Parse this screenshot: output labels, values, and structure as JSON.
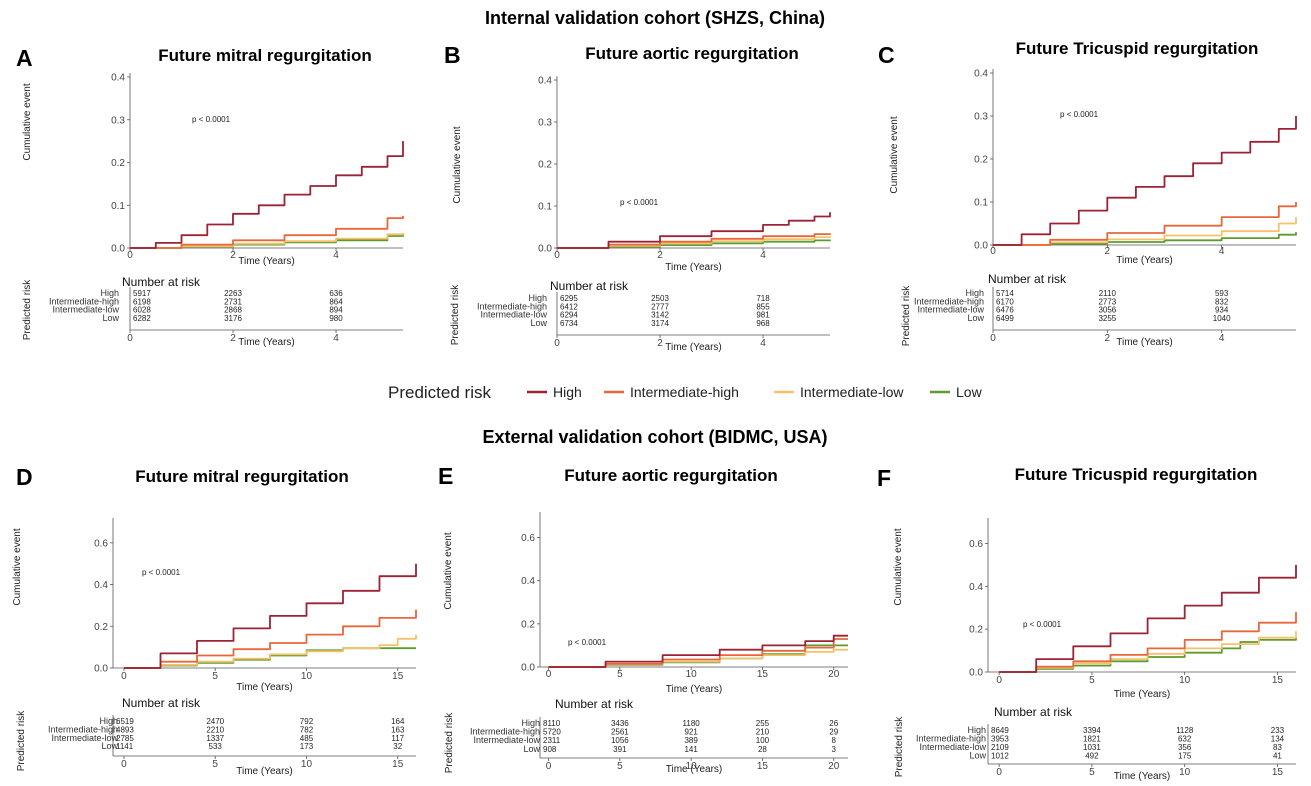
{
  "headings": {
    "internal": "Internal validation cohort (SHZS, China)",
    "external": "External validation cohort (BIDMC, USA)"
  },
  "legend": {
    "title": "Predicted risk",
    "items": [
      {
        "label": "High",
        "color": "#9b2335"
      },
      {
        "label": "Intermediate-high",
        "color": "#e8673a"
      },
      {
        "label": "Intermediate-low",
        "color": "#f5c26b"
      },
      {
        "label": "Low",
        "color": "#5e9b2e"
      }
    ]
  },
  "chart_data": [
    {
      "type": "line",
      "letter": "A",
      "title": "Future mitral regurgitation",
      "xlabel": "Time (Years)",
      "ylabel": "Cumulative event",
      "xlim": [
        0,
        5.3
      ],
      "ylim": [
        0,
        0.4
      ],
      "xticks": [
        0,
        2,
        4
      ],
      "yticks": [
        0.0,
        0.1,
        0.2,
        0.3,
        0.4
      ],
      "p_value": "p < 0.0001",
      "series": [
        {
          "name": "High",
          "x": [
            0,
            0.5,
            1,
            1.5,
            2,
            2.5,
            3,
            3.5,
            4,
            4.5,
            5,
            5.3
          ],
          "y": [
            0,
            0.012,
            0.03,
            0.055,
            0.08,
            0.1,
            0.125,
            0.145,
            0.17,
            0.19,
            0.215,
            0.25
          ]
        },
        {
          "name": "Intermediate-high",
          "x": [
            0,
            1,
            2,
            3,
            4,
            5,
            5.3
          ],
          "y": [
            0,
            0.008,
            0.018,
            0.03,
            0.045,
            0.07,
            0.075
          ]
        },
        {
          "name": "Intermediate-low",
          "x": [
            0,
            1,
            2,
            3,
            4,
            5,
            5.3
          ],
          "y": [
            0,
            0.004,
            0.01,
            0.016,
            0.022,
            0.032,
            0.035
          ]
        },
        {
          "name": "Low",
          "x": [
            0,
            1,
            2,
            3,
            4,
            5,
            5.3
          ],
          "y": [
            0,
            0.003,
            0.008,
            0.013,
            0.018,
            0.028,
            0.033
          ]
        }
      ],
      "risk_table": {
        "title": "Number at risk",
        "row_axis_label": "Predicted risk",
        "times": [
          0,
          2,
          4
        ],
        "rows": [
          {
            "label": "High",
            "values": [
              "5917",
              "2263",
              "636"
            ]
          },
          {
            "label": "Intermediate-high",
            "values": [
              "6198",
              "2731",
              "864"
            ]
          },
          {
            "label": "Intermediate-low",
            "values": [
              "6028",
              "2868",
              "894"
            ]
          },
          {
            "label": "Low",
            "values": [
              "6282",
              "3176",
              "980"
            ]
          }
        ]
      }
    },
    {
      "type": "line",
      "letter": "B",
      "title": "Future aortic regurgitation",
      "xlabel": "Time (Years)",
      "ylabel": "Cumulative event",
      "xlim": [
        0,
        5.3
      ],
      "ylim": [
        0,
        0.4
      ],
      "xticks": [
        0,
        2,
        4
      ],
      "yticks": [
        0.0,
        0.1,
        0.2,
        0.3,
        0.4
      ],
      "p_value": "p < 0.0001",
      "series": [
        {
          "name": "High",
          "x": [
            0,
            1,
            2,
            3,
            4,
            4.5,
            5,
            5.3
          ],
          "y": [
            0,
            0.015,
            0.028,
            0.04,
            0.055,
            0.065,
            0.075,
            0.085
          ]
        },
        {
          "name": "Intermediate-high",
          "x": [
            0,
            1,
            2,
            3,
            4,
            5,
            5.3
          ],
          "y": [
            0,
            0.008,
            0.015,
            0.022,
            0.028,
            0.033,
            0.035
          ]
        },
        {
          "name": "Intermediate-low",
          "x": [
            0,
            1,
            2,
            3,
            4,
            5,
            5.3
          ],
          "y": [
            0,
            0.005,
            0.011,
            0.016,
            0.021,
            0.026,
            0.028
          ]
        },
        {
          "name": "Low",
          "x": [
            0,
            1,
            2,
            3,
            4,
            5,
            5.3
          ],
          "y": [
            0,
            0.003,
            0.007,
            0.011,
            0.015,
            0.018,
            0.02
          ]
        }
      ],
      "risk_table": {
        "title": "Number at risk",
        "row_axis_label": "Predicted risk",
        "times": [
          0,
          2,
          4
        ],
        "rows": [
          {
            "label": "High",
            "values": [
              "6295",
              "2503",
              "718"
            ]
          },
          {
            "label": "Intermediate-high",
            "values": [
              "6412",
              "2777",
              "855"
            ]
          },
          {
            "label": "Intermediate-low",
            "values": [
              "6294",
              "3142",
              "981"
            ]
          },
          {
            "label": "Low",
            "values": [
              "6734",
              "3174",
              "968"
            ]
          }
        ]
      }
    },
    {
      "type": "line",
      "letter": "C",
      "title": "Future Tricuspid regurgitation",
      "xlabel": "Time (Years)",
      "ylabel": "Cumulative event",
      "xlim": [
        0,
        5.3
      ],
      "ylim": [
        0,
        0.4
      ],
      "xticks": [
        0,
        2,
        4
      ],
      "yticks": [
        0.0,
        0.1,
        0.2,
        0.3,
        0.4
      ],
      "p_value": "p < 0.0001",
      "series": [
        {
          "name": "High",
          "x": [
            0,
            0.5,
            1,
            1.5,
            2,
            2.5,
            3,
            3.5,
            4,
            4.5,
            5,
            5.3
          ],
          "y": [
            0,
            0.025,
            0.05,
            0.08,
            0.11,
            0.135,
            0.16,
            0.19,
            0.215,
            0.24,
            0.27,
            0.3
          ]
        },
        {
          "name": "Intermediate-high",
          "x": [
            0,
            1,
            2,
            3,
            4,
            5,
            5.3
          ],
          "y": [
            0,
            0.012,
            0.028,
            0.045,
            0.065,
            0.09,
            0.1
          ]
        },
        {
          "name": "Intermediate-low",
          "x": [
            0,
            1,
            2,
            3,
            4,
            5,
            5.3
          ],
          "y": [
            0,
            0.006,
            0.013,
            0.022,
            0.032,
            0.05,
            0.065
          ]
        },
        {
          "name": "Low",
          "x": [
            0,
            1,
            2,
            3,
            4,
            5,
            5.3
          ],
          "y": [
            0,
            0.003,
            0.007,
            0.011,
            0.016,
            0.024,
            0.03
          ]
        }
      ],
      "risk_table": {
        "title": "Number at risk",
        "row_axis_label": "Predicted risk",
        "times": [
          0,
          2,
          4
        ],
        "rows": [
          {
            "label": "High",
            "values": [
              "5714",
              "2110",
              "593"
            ]
          },
          {
            "label": "Intermediate-high",
            "values": [
              "6170",
              "2773",
              "832"
            ]
          },
          {
            "label": "Intermediate-low",
            "values": [
              "6476",
              "3056",
              "934"
            ]
          },
          {
            "label": "Low",
            "values": [
              "6499",
              "3255",
              "1040"
            ]
          }
        ]
      }
    },
    {
      "type": "line",
      "letter": "D",
      "title": "Future mitral regurgitation",
      "xlabel": "Time (Years)",
      "ylabel": "Cumulative event",
      "xlim": [
        -0.6,
        16
      ],
      "ylim": [
        0,
        0.7
      ],
      "xticks": [
        0,
        5,
        10,
        15
      ],
      "yticks": [
        0.0,
        0.2,
        0.4,
        0.6
      ],
      "p_value": "p < 0.0001",
      "series": [
        {
          "name": "High",
          "x": [
            0,
            2,
            4,
            6,
            8,
            10,
            12,
            14,
            16
          ],
          "y": [
            0,
            0.07,
            0.13,
            0.19,
            0.25,
            0.31,
            0.37,
            0.44,
            0.5
          ]
        },
        {
          "name": "Intermediate-high",
          "x": [
            0,
            2,
            4,
            6,
            8,
            10,
            12,
            14,
            16
          ],
          "y": [
            0,
            0.03,
            0.06,
            0.09,
            0.12,
            0.16,
            0.2,
            0.24,
            0.28
          ]
        },
        {
          "name": "Intermediate-low",
          "x": [
            0,
            2,
            4,
            6,
            8,
            10,
            12,
            14,
            15,
            16
          ],
          "y": [
            0,
            0.015,
            0.03,
            0.045,
            0.065,
            0.08,
            0.095,
            0.11,
            0.14,
            0.16
          ]
        },
        {
          "name": "Low",
          "x": [
            0,
            2,
            4,
            6,
            8,
            10,
            12,
            14,
            16
          ],
          "y": [
            0,
            0.012,
            0.025,
            0.04,
            0.06,
            0.085,
            0.095,
            0.095,
            0.095
          ]
        }
      ],
      "risk_table": {
        "title": "Number at risk",
        "row_axis_label": "Predicted risk",
        "times": [
          0,
          5,
          10,
          15
        ],
        "rows": [
          {
            "label": "High",
            "values": [
              "6519",
              "2470",
              "792",
              "164"
            ]
          },
          {
            "label": "Intermediate-high",
            "values": [
              "4893",
              "2210",
              "782",
              "163"
            ]
          },
          {
            "label": "Intermediate-low",
            "values": [
              "2785",
              "1337",
              "485",
              "117"
            ]
          },
          {
            "label": "Low",
            "values": [
              "1141",
              "533",
              "173",
              "32"
            ]
          }
        ]
      }
    },
    {
      "type": "line",
      "letter": "E",
      "title": "Future aortic regurgitation",
      "xlabel": "Time (Years)",
      "ylabel": "Cumulative event",
      "xlim": [
        -0.6,
        21
      ],
      "ylim": [
        0,
        0.7
      ],
      "xticks": [
        0,
        5,
        10,
        15,
        20
      ],
      "yticks": [
        0.0,
        0.2,
        0.4,
        0.6
      ],
      "p_value": "p < 0.0001",
      "series": [
        {
          "name": "High",
          "x": [
            0,
            4,
            8,
            12,
            15,
            18,
            20,
            21
          ],
          "y": [
            0,
            0.025,
            0.055,
            0.08,
            0.1,
            0.12,
            0.145,
            0.145
          ]
        },
        {
          "name": "Intermediate-high",
          "x": [
            0,
            4,
            8,
            12,
            15,
            18,
            20,
            21
          ],
          "y": [
            0,
            0.015,
            0.035,
            0.055,
            0.075,
            0.09,
            0.13,
            0.13
          ]
        },
        {
          "name": "Intermediate-low",
          "x": [
            0,
            4,
            8,
            12,
            15,
            18,
            20,
            21
          ],
          "y": [
            0,
            0.012,
            0.025,
            0.04,
            0.055,
            0.07,
            0.08,
            0.08
          ]
        },
        {
          "name": "Low",
          "x": [
            0,
            4,
            8,
            12,
            15,
            17.5,
            18,
            20,
            21
          ],
          "y": [
            0,
            0.01,
            0.022,
            0.04,
            0.06,
            0.06,
            0.1,
            0.1,
            0.1
          ]
        }
      ],
      "risk_table": {
        "title": "Number at risk",
        "row_axis_label": "Predicted risk",
        "times": [
          0,
          5,
          10,
          15,
          20
        ],
        "rows": [
          {
            "label": "High",
            "values": [
              "8110",
              "3436",
              "1180",
              "255",
              "26"
            ]
          },
          {
            "label": "Intermediate-high",
            "values": [
              "5720",
              "2561",
              "921",
              "210",
              "29"
            ]
          },
          {
            "label": "Intermediate-low",
            "values": [
              "2311",
              "1056",
              "389",
              "100",
              "8"
            ]
          },
          {
            "label": "Low",
            "values": [
              "908",
              "391",
              "141",
              "28",
              "3"
            ]
          }
        ]
      }
    },
    {
      "type": "line",
      "letter": "F",
      "title": "Future Tricuspid regurgitation",
      "xlabel": "Time (Years)",
      "ylabel": "Cumulative event",
      "xlim": [
        -0.6,
        16
      ],
      "ylim": [
        0,
        0.7
      ],
      "xticks": [
        0,
        5,
        10,
        15
      ],
      "yticks": [
        0.0,
        0.2,
        0.4,
        0.6
      ],
      "p_value": "p < 0.0001",
      "series": [
        {
          "name": "High",
          "x": [
            0,
            2,
            4,
            6,
            8,
            10,
            12,
            14,
            16
          ],
          "y": [
            0,
            0.06,
            0.12,
            0.18,
            0.25,
            0.31,
            0.37,
            0.44,
            0.5
          ]
        },
        {
          "name": "Intermediate-high",
          "x": [
            0,
            2,
            4,
            6,
            8,
            10,
            12,
            14,
            16
          ],
          "y": [
            0,
            0.025,
            0.05,
            0.08,
            0.11,
            0.15,
            0.19,
            0.23,
            0.28
          ]
        },
        {
          "name": "Intermediate-low",
          "x": [
            0,
            2,
            4,
            6,
            8,
            10,
            12,
            14,
            16
          ],
          "y": [
            0,
            0.02,
            0.04,
            0.06,
            0.085,
            0.11,
            0.13,
            0.16,
            0.19
          ]
        },
        {
          "name": "Low",
          "x": [
            0,
            2,
            4,
            6,
            8,
            10,
            12,
            13,
            14,
            16
          ],
          "y": [
            0,
            0.015,
            0.03,
            0.05,
            0.07,
            0.09,
            0.11,
            0.14,
            0.15,
            0.16
          ]
        }
      ],
      "risk_table": {
        "title": "Number at risk",
        "row_axis_label": "Predicted risk",
        "times": [
          0,
          5,
          10,
          15
        ],
        "rows": [
          {
            "label": "High",
            "values": [
              "8649",
              "3394",
              "1128",
              "233"
            ]
          },
          {
            "label": "Intermediate-high",
            "values": [
              "3953",
              "1821",
              "632",
              "134"
            ]
          },
          {
            "label": "Intermediate-low",
            "values": [
              "2109",
              "1031",
              "356",
              "83"
            ]
          },
          {
            "label": "Low",
            "values": [
              "1012",
              "492",
              "175",
              "41"
            ]
          }
        ]
      }
    }
  ]
}
